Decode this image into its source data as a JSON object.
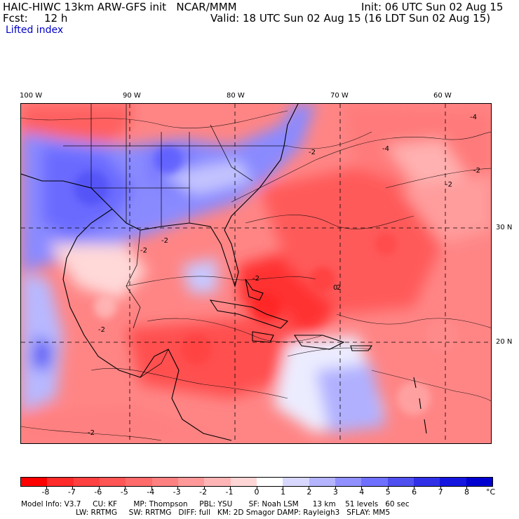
{
  "header": {
    "model": "HAIC-HIWC 13km ARW-GFS init   NCAR/MMM",
    "fcst_label": "Fcst:",
    "fcst_value": "12 h",
    "init": "Init: 06 UTC Sun 02 Aug 15",
    "valid": "Valid: 18 UTC Sun 02 Aug 15 (16 LDT Sun 02 Aug 15)",
    "field": "Lifted index"
  },
  "axes": {
    "longitude_labels": [
      "100 W",
      "90 W",
      "80 W",
      "70 W",
      "60 W"
    ],
    "latitude_labels": [
      "30 N",
      "20 N"
    ]
  },
  "contour_labels": [
    "-2",
    "-2",
    "-2",
    "-2",
    "-2",
    "-4",
    "-4",
    "2",
    "-2",
    "-2",
    "0",
    "-2"
  ],
  "legend": {
    "unit": "°C",
    "ticks": [
      "-8",
      "-7",
      "-6",
      "-5",
      "-4",
      "-3",
      "-2",
      "-1",
      "0",
      "1",
      "2",
      "3",
      "4",
      "5",
      "6",
      "7",
      "8"
    ],
    "colors": [
      "#ff0000",
      "#ff2a2a",
      "#ff4040",
      "#ff5555",
      "#ff6a6a",
      "#ff8080",
      "#ff9999",
      "#ffb5b5",
      "#ffd6d6",
      "#ffffff",
      "#d8d8ff",
      "#b4b4ff",
      "#9090ff",
      "#7070ff",
      "#5050f0",
      "#3030e8",
      "#1515e0",
      "#0000d0"
    ]
  },
  "model_info": {
    "line1": "Model Info: V3.7     CU: KF       MP: Thompson     PBL: YSU       SF: Noah LSM      13 km    51 levels   60 sec",
    "line2": "LW: RRTMG     SW: RRTMG   DIFF: full   KM: 2D Smagor DAMP: Rayleigh3   SFLAY: MM5"
  }
}
